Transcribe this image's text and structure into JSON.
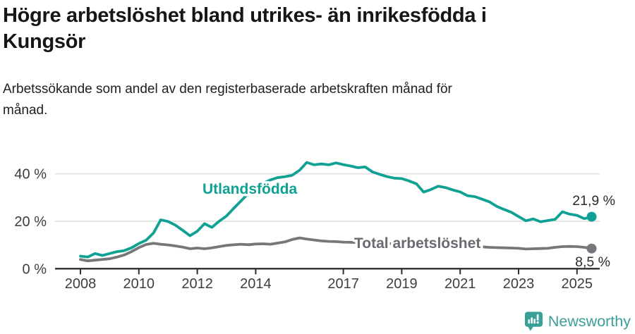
{
  "header": {
    "title_lines": [
      "Högre arbetslöshet bland utrikes- än inrikesfödda i",
      "Kungsör"
    ],
    "subtitle_lines": [
      "Arbetssökande som andel av den registerbaserade arbetskraften månad för",
      "månad."
    ]
  },
  "footer": {
    "brand": "Newsworthy",
    "brand_color": "#3a9f97"
  },
  "chart_data": {
    "type": "line",
    "x_axis": {
      "ticks": [
        2008,
        2010,
        2012,
        2014,
        2017,
        2019,
        2021,
        2023,
        2025
      ],
      "range": [
        2008,
        2025.5
      ]
    },
    "y_axis": {
      "ticks": [
        0,
        20,
        40
      ],
      "tick_suffix": " %",
      "range": [
        0,
        46
      ],
      "unit": "%"
    },
    "grid": "horizontal",
    "x_start": 2008,
    "x_step_years": 0.25,
    "series": [
      {
        "name": "Utlandsfödda",
        "color": "#0fa294",
        "end_label": "21,9 %",
        "end_value": 21.9,
        "values": [
          5.3,
          4.9,
          6.4,
          5.6,
          6.4,
          7.2,
          7.6,
          8.8,
          10.6,
          12.0,
          15.0,
          20.6,
          19.9,
          18.4,
          16.2,
          13.9,
          15.8,
          19.0,
          17.4,
          20.0,
          22.2,
          25.5,
          28.6,
          31.8,
          34.0,
          36.0,
          37.4,
          38.4,
          38.8,
          39.4,
          41.5,
          44.8,
          43.8,
          44.2,
          43.8,
          44.6,
          43.9,
          43.3,
          42.6,
          42.9,
          40.8,
          39.8,
          38.8,
          38.2,
          38.0,
          37.0,
          35.8,
          32.3,
          33.4,
          34.8,
          34.2,
          33.2,
          32.4,
          30.8,
          30.4,
          29.3,
          28.2,
          26.3,
          25.0,
          23.8,
          22.0,
          20.2,
          21.0,
          19.8,
          20.3,
          20.8,
          24.0,
          23.0,
          22.5,
          21.1,
          21.9
        ]
      },
      {
        "name": "Total arbetslöshet",
        "color": "#76767b",
        "label_color": "#6a6a71",
        "end_label": "8,5 %",
        "end_value": 8.5,
        "values": [
          3.9,
          3.3,
          3.6,
          3.9,
          4.2,
          4.9,
          5.8,
          7.2,
          8.9,
          10.2,
          10.7,
          10.3,
          10.0,
          9.6,
          9.1,
          8.4,
          8.7,
          8.4,
          8.8,
          9.3,
          9.8,
          10.1,
          10.3,
          10.1,
          10.4,
          10.5,
          10.3,
          10.8,
          11.3,
          12.3,
          13.0,
          12.5,
          12.1,
          11.7,
          11.5,
          11.4,
          11.2,
          11.1,
          11.0,
          10.9,
          10.8,
          10.7,
          10.6,
          10.5,
          10.4,
          10.3,
          10.2,
          10.0,
          9.9,
          10.4,
          10.3,
          10.1,
          9.8,
          9.6,
          9.4,
          9.2,
          9.0,
          8.9,
          8.8,
          8.7,
          8.6,
          8.3,
          8.4,
          8.5,
          8.6,
          9.0,
          9.3,
          9.4,
          9.3,
          9.0,
          8.5
        ]
      }
    ]
  }
}
